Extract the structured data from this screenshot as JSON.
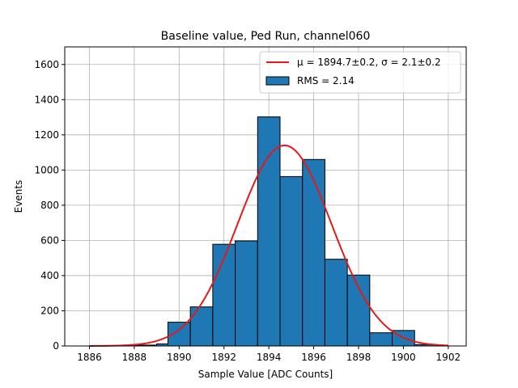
{
  "chart_data": {
    "type": "bar",
    "title": "Baseline value, Ped Run, channel060",
    "xlabel": "Sample Value [ADC Counts]",
    "ylabel": "Events",
    "xlim": [
      1884.9,
      1902.8
    ],
    "ylim": [
      0,
      1700
    ],
    "xticks": [
      1886,
      1888,
      1890,
      1892,
      1894,
      1896,
      1898,
      1900,
      1902
    ],
    "yticks": [
      0,
      200,
      400,
      600,
      800,
      1000,
      1200,
      1400,
      1600
    ],
    "grid": true,
    "legend_position": "top-right",
    "histogram": {
      "name": "RMS = 2.14",
      "color": "#1f77b4",
      "edge_color": "#000000",
      "bins": [
        {
          "x0": 1886.0,
          "x1": 1887.0,
          "value": 0
        },
        {
          "x0": 1887.0,
          "x1": 1888.0,
          "value": 0
        },
        {
          "x0": 1888.0,
          "x1": 1889.0,
          "value": 5
        },
        {
          "x0": 1889.0,
          "x1": 1889.5,
          "value": 12
        },
        {
          "x0": 1889.5,
          "x1": 1890.5,
          "value": 135
        },
        {
          "x0": 1890.5,
          "x1": 1891.5,
          "value": 222
        },
        {
          "x0": 1891.5,
          "x1": 1892.5,
          "value": 578
        },
        {
          "x0": 1892.5,
          "x1": 1893.5,
          "value": 597
        },
        {
          "x0": 1893.5,
          "x1": 1894.5,
          "value": 1302
        },
        {
          "x0": 1894.5,
          "x1": 1895.5,
          "value": 963
        },
        {
          "x0": 1895.5,
          "x1": 1896.5,
          "value": 1060
        },
        {
          "x0": 1896.5,
          "x1": 1897.5,
          "value": 493
        },
        {
          "x0": 1897.5,
          "x1": 1898.5,
          "value": 403
        },
        {
          "x0": 1898.5,
          "x1": 1899.5,
          "value": 75
        },
        {
          "x0": 1899.5,
          "x1": 1900.5,
          "value": 88
        },
        {
          "x0": 1900.5,
          "x1": 1901.5,
          "value": 8
        },
        {
          "x0": 1901.5,
          "x1": 1902.0,
          "value": 0
        }
      ]
    },
    "fit": {
      "name_prefix": "μ = 1894.7±0.2, ",
      "name_suffix": "σ = 2.1±0.2",
      "color": "#e31a1c",
      "type": "gaussian",
      "mu": 1894.7,
      "sigma": 2.1,
      "amplitude": 1140,
      "x_range": [
        1886,
        1902
      ]
    }
  }
}
